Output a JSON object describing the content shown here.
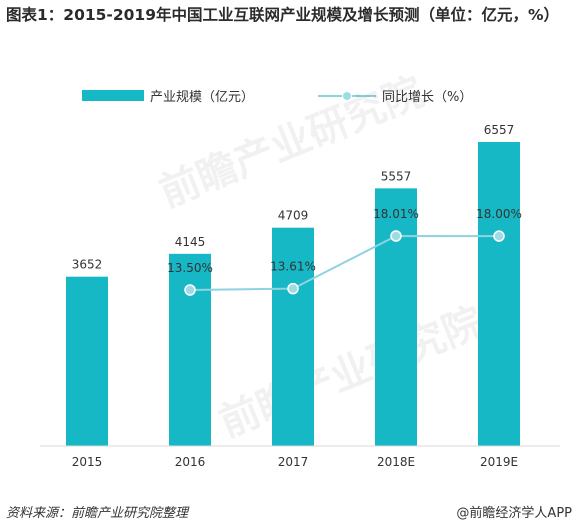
{
  "title": "图表1：2015-2019年中国工业互联网产业规模及增长预测（单位：亿元，%）",
  "legend": {
    "bar_label": "产业规模（亿元）",
    "line_label": "同比增长（%）"
  },
  "source": "资料来源：前瞻产业研究院整理",
  "brand": "@前瞻经济学人APP",
  "watermark_text": "前瞻产业研究院",
  "colors": {
    "bar": "#16b8c5",
    "line": "#8fd3de",
    "dot": "#9fdbe4"
  },
  "chart_data": {
    "type": "bar",
    "categories": [
      "2015",
      "2016",
      "2017",
      "2018E",
      "2019E"
    ],
    "series": [
      {
        "name": "产业规模（亿元）",
        "type": "bar",
        "values": [
          3652,
          4145,
          4709,
          5557,
          6557
        ],
        "labels": [
          "3652",
          "4145",
          "4709",
          "5557",
          "6557"
        ]
      },
      {
        "name": "同比增长（%）",
        "type": "line",
        "values": [
          null,
          13.5,
          13.61,
          18.01,
          18.0
        ],
        "labels": [
          "",
          "13.50%",
          "13.61%",
          "18.01%",
          "18.00%"
        ]
      }
    ],
    "grid": false,
    "legend_position": "top"
  }
}
